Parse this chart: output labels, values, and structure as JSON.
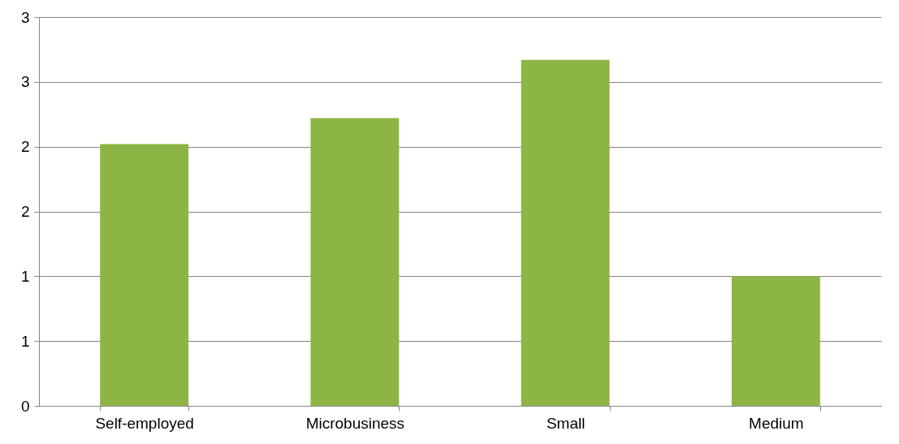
{
  "chart_data": {
    "type": "bar",
    "categories": [
      "Self-employed",
      "Microbusiness",
      "Small",
      "Medium"
    ],
    "values": [
      2.02,
      2.22,
      2.67,
      1.0
    ],
    "color": "#8db545",
    "ylim": [
      0,
      3
    ],
    "yticks": [
      0,
      {
        "value": 0.5,
        "label": "1"
      },
      1,
      {
        "value": 1.5,
        "label": "2"
      },
      2,
      {
        "value": 2.5,
        "label": "3"
      },
      3
    ],
    "grid": "y"
  }
}
